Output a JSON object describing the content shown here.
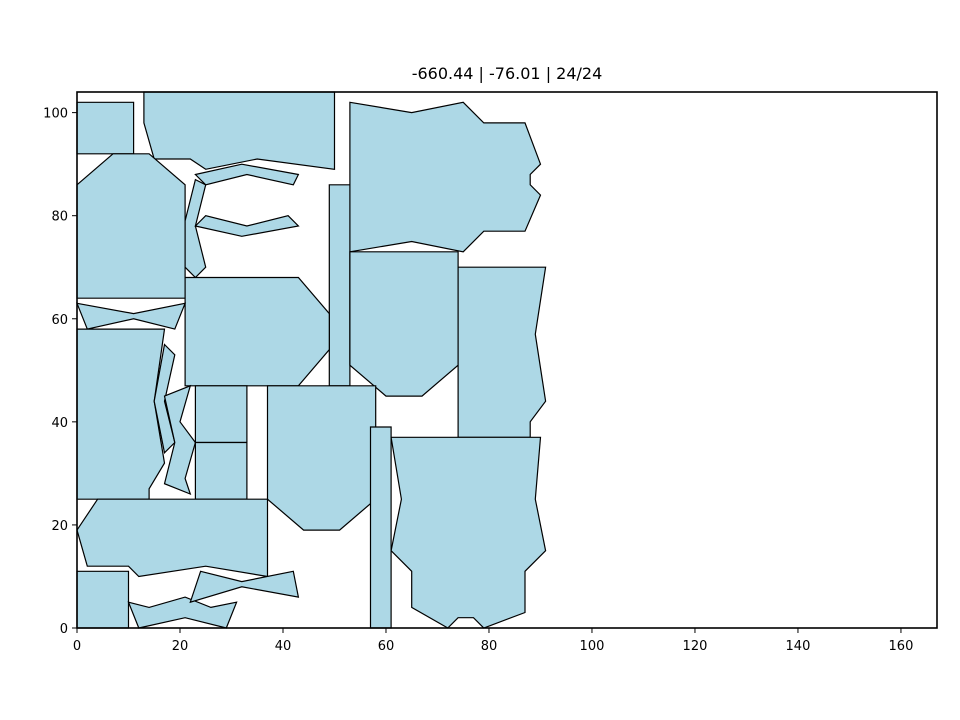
{
  "chart_data": {
    "type": "polygon-layout",
    "title": "-660.44 | -76.01 | 24/24",
    "xlim": [
      0,
      167
    ],
    "ylim": [
      0,
      104
    ],
    "xticks": [
      0,
      20,
      40,
      60,
      80,
      100,
      120,
      140,
      160
    ],
    "yticks": [
      0,
      20,
      40,
      60,
      80,
      100
    ],
    "fill_color": "#add8e6",
    "edge_color": "#000000",
    "grid": false,
    "pieces": [
      {
        "name": "p01",
        "points": [
          [
            0,
            92
          ],
          [
            11,
            92
          ],
          [
            11,
            102
          ],
          [
            0,
            102
          ]
        ]
      },
      {
        "name": "p02",
        "points": [
          [
            13,
            104
          ],
          [
            50,
            104
          ],
          [
            50,
            89
          ],
          [
            35,
            91
          ],
          [
            25,
            89
          ],
          [
            22,
            91
          ],
          [
            15,
            91
          ],
          [
            13,
            98
          ]
        ]
      },
      {
        "name": "p03",
        "points": [
          [
            53,
            102
          ],
          [
            65,
            100
          ],
          [
            75,
            102
          ],
          [
            79,
            98
          ],
          [
            87,
            98
          ],
          [
            90,
            90
          ],
          [
            88,
            88
          ],
          [
            88,
            86
          ],
          [
            90,
            84
          ],
          [
            87,
            77
          ],
          [
            79,
            77
          ],
          [
            75,
            73
          ],
          [
            65,
            75
          ],
          [
            53,
            73
          ]
        ]
      },
      {
        "name": "p04",
        "points": [
          [
            0,
            86
          ],
          [
            7,
            92
          ],
          [
            14,
            92
          ],
          [
            21,
            86
          ],
          [
            21,
            64
          ],
          [
            0,
            64
          ]
        ]
      },
      {
        "name": "p05",
        "points": [
          [
            23,
            88
          ],
          [
            32,
            90
          ],
          [
            43,
            88
          ],
          [
            42,
            86
          ],
          [
            33,
            88
          ],
          [
            25,
            86
          ]
        ]
      },
      {
        "name": "p06",
        "points": [
          [
            23,
            87
          ],
          [
            25,
            86
          ],
          [
            23,
            78
          ],
          [
            25,
            70
          ],
          [
            23,
            68
          ],
          [
            21,
            70
          ],
          [
            21,
            79
          ]
        ]
      },
      {
        "name": "p07",
        "points": [
          [
            23,
            78
          ],
          [
            32,
            76
          ],
          [
            43,
            78
          ],
          [
            41,
            80
          ],
          [
            33,
            78
          ],
          [
            25,
            80
          ]
        ]
      },
      {
        "name": "p08",
        "points": [
          [
            49,
            86
          ],
          [
            53,
            86
          ],
          [
            53,
            47
          ],
          [
            49,
            47
          ]
        ]
      },
      {
        "name": "p09",
        "points": [
          [
            21,
            68
          ],
          [
            43,
            68
          ],
          [
            49,
            61
          ],
          [
            49,
            54
          ],
          [
            43,
            47
          ],
          [
            21,
            47
          ]
        ]
      },
      {
        "name": "p10",
        "points": [
          [
            53,
            73
          ],
          [
            74,
            73
          ],
          [
            74,
            51
          ],
          [
            67,
            45
          ],
          [
            60,
            45
          ],
          [
            53,
            51
          ]
        ]
      },
      {
        "name": "p11",
        "points": [
          [
            74,
            70
          ],
          [
            91,
            70
          ],
          [
            89,
            57
          ],
          [
            91,
            44
          ],
          [
            88,
            40
          ],
          [
            88,
            37
          ],
          [
            74,
            37
          ]
        ]
      },
      {
        "name": "p12",
        "points": [
          [
            0,
            63
          ],
          [
            11,
            61
          ],
          [
            21,
            63
          ],
          [
            19,
            58
          ],
          [
            11,
            60
          ],
          [
            2,
            58
          ]
        ]
      },
      {
        "name": "p13",
        "points": [
          [
            0,
            58
          ],
          [
            17,
            58
          ],
          [
            15,
            44
          ],
          [
            17,
            32
          ],
          [
            14,
            27
          ],
          [
            14,
            25
          ],
          [
            0,
            25
          ]
        ]
      },
      {
        "name": "p14",
        "points": [
          [
            17,
            55
          ],
          [
            19,
            53
          ],
          [
            17,
            44
          ],
          [
            19,
            36
          ],
          [
            17,
            34
          ],
          [
            15,
            44
          ]
        ]
      },
      {
        "name": "p15",
        "points": [
          [
            17,
            45
          ],
          [
            22,
            47
          ],
          [
            20,
            40
          ],
          [
            23,
            36
          ],
          [
            21,
            29
          ],
          [
            22,
            26
          ],
          [
            17,
            28
          ],
          [
            19,
            36
          ]
        ]
      },
      {
        "name": "p16",
        "points": [
          [
            23,
            47
          ],
          [
            33,
            47
          ],
          [
            33,
            36
          ],
          [
            23,
            36
          ]
        ]
      },
      {
        "name": "p17",
        "points": [
          [
            23,
            36
          ],
          [
            33,
            36
          ],
          [
            33,
            25
          ],
          [
            23,
            25
          ]
        ]
      },
      {
        "name": "p18",
        "points": [
          [
            37,
            47
          ],
          [
            58,
            47
          ],
          [
            58,
            25
          ],
          [
            51,
            19
          ],
          [
            44,
            19
          ],
          [
            37,
            25
          ]
        ]
      },
      {
        "name": "p19",
        "points": [
          [
            57,
            39
          ],
          [
            61,
            39
          ],
          [
            61,
            0
          ],
          [
            57,
            0
          ]
        ]
      },
      {
        "name": "p20",
        "points": [
          [
            61,
            37
          ],
          [
            90,
            37
          ],
          [
            89,
            25
          ],
          [
            91,
            15
          ],
          [
            87,
            11
          ],
          [
            87,
            3
          ],
          [
            79,
            0
          ],
          [
            77,
            2
          ],
          [
            74,
            2
          ],
          [
            72,
            0
          ],
          [
            65,
            4
          ],
          [
            65,
            11
          ],
          [
            61,
            15
          ],
          [
            63,
            25
          ]
        ]
      },
      {
        "name": "p21",
        "points": [
          [
            4,
            25
          ],
          [
            37,
            25
          ],
          [
            37,
            10
          ],
          [
            25,
            12
          ],
          [
            12,
            10
          ],
          [
            10,
            12
          ],
          [
            2,
            12
          ],
          [
            0,
            19
          ]
        ]
      },
      {
        "name": "p22",
        "points": [
          [
            0,
            11
          ],
          [
            10,
            11
          ],
          [
            10,
            0
          ],
          [
            0,
            0
          ]
        ]
      },
      {
        "name": "p23",
        "points": [
          [
            10,
            5
          ],
          [
            14,
            4
          ],
          [
            21,
            6
          ],
          [
            26,
            4
          ],
          [
            31,
            5
          ],
          [
            29,
            0
          ],
          [
            21,
            2
          ],
          [
            12,
            0
          ]
        ]
      },
      {
        "name": "p24",
        "points": [
          [
            24,
            11
          ],
          [
            32,
            9
          ],
          [
            42,
            11
          ],
          [
            43,
            6
          ],
          [
            32,
            8
          ],
          [
            22,
            5
          ]
        ]
      }
    ]
  }
}
